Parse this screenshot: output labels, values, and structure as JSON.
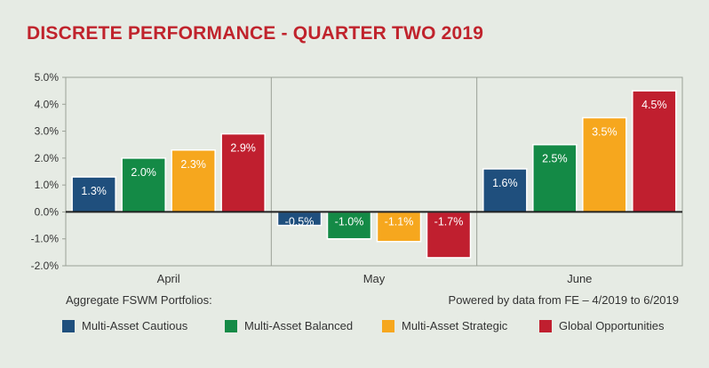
{
  "title": "DISCRETE PERFORMANCE - QUARTER TWO 2019",
  "footer": {
    "left": "Aggregate FSWM Portfolios:",
    "right": "Powered by data from FE – 4/2019 to 6/2019"
  },
  "chart_data": {
    "type": "bar",
    "title": "DISCRETE PERFORMANCE - QUARTER TWO 2019",
    "categories": [
      "April",
      "May",
      "June"
    ],
    "ylim": [
      -2.0,
      5.0
    ],
    "yticks": [
      "5.0%",
      "4.0%",
      "3.0%",
      "2.0%",
      "1.0%",
      "0.0%",
      "-1.0%",
      "-2.0%"
    ],
    "ytick_values": [
      5,
      4,
      3,
      2,
      1,
      0,
      -1,
      -2
    ],
    "legend_position": "bottom",
    "series": [
      {
        "name": "Multi-Asset Cautious",
        "color": "#1f4f7d",
        "values": [
          1.3,
          -0.5,
          1.6
        ],
        "labels": [
          "1.3%",
          "-0.5%",
          "1.6%"
        ]
      },
      {
        "name": "Multi-Asset Balanced",
        "color": "#148a46",
        "values": [
          2.0,
          -1.0,
          2.5
        ],
        "labels": [
          "2.0%",
          "-1.0%",
          "2.5%"
        ]
      },
      {
        "name": "Multi-Asset Strategic",
        "color": "#f6a71e",
        "values": [
          2.3,
          -1.1,
          3.5
        ],
        "labels": [
          "2.3%",
          "-1.1%",
          "3.5%"
        ]
      },
      {
        "name": "Global Opportunities",
        "color": "#c01f2f",
        "values": [
          2.9,
          -1.7,
          4.5
        ],
        "labels": [
          "2.9%",
          "-1.7%",
          "4.5%"
        ]
      }
    ]
  }
}
